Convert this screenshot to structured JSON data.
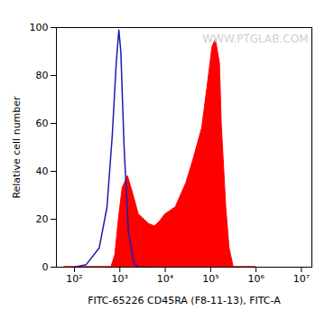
{
  "chart_data": {
    "type": "histogram",
    "x_label": "FITC-65226 CD45RA (F8-11-13), FITC-A",
    "y_label": "Relative cell number",
    "annotation": "WWW.PTGLAB.COM",
    "log": "x",
    "xlim": [
      40,
      17000000
    ],
    "ylim": [
      0,
      100
    ],
    "xticks": [
      {
        "value": 100,
        "label": "10²"
      },
      {
        "value": 1000,
        "label": "10³"
      },
      {
        "value": 10000,
        "label": "10⁴"
      },
      {
        "value": 100000,
        "label": "10⁵"
      },
      {
        "value": 1000000,
        "label": "10⁶"
      },
      {
        "value": 10000000,
        "label": "10⁷"
      }
    ],
    "yticks": [
      0,
      20,
      40,
      60,
      80,
      100
    ],
    "series": [
      {
        "type": "area",
        "color": "#ff0000",
        "x": [
          60,
          300,
          650,
          790,
          950,
          1150,
          1500,
          2000,
          2600,
          4400,
          5900,
          7600,
          10000,
          17000,
          29000,
          42000,
          65000,
          85000,
          110000,
          130000,
          160000,
          175000,
          220000,
          260000,
          320000,
          1000000
        ],
        "values": [
          0,
          0,
          0,
          5,
          20,
          33,
          38,
          30,
          22,
          18,
          17,
          19,
          22,
          25,
          35,
          45,
          58,
          75,
          92,
          95,
          85,
          60,
          25,
          8,
          0,
          0
        ]
      },
      {
        "type": "line",
        "color": "#1c1cb4",
        "x": [
          100,
          180,
          350,
          520,
          680,
          830,
          950,
          1050,
          1240,
          1540,
          2000,
          2600,
          5000
        ],
        "values": [
          0,
          1,
          8,
          25,
          55,
          85,
          99,
          90,
          50,
          15,
          2,
          0,
          0
        ]
      }
    ]
  }
}
